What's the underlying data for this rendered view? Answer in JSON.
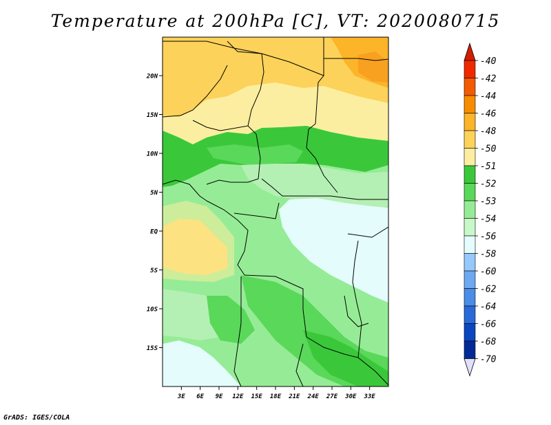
{
  "title": "Temperature at 200hPa [C], VT: 2020080715",
  "credit": "GrADS: IGES/COLA",
  "map": {
    "lon_range": [
      0,
      36
    ],
    "lat_range": [
      -20,
      25
    ],
    "x_ticks": [
      "3E",
      "6E",
      "9E",
      "12E",
      "15E",
      "18E",
      "21E",
      "24E",
      "27E",
      "30E",
      "33E"
    ],
    "y_ticks": [
      "20N",
      "15N",
      "10N",
      "5N",
      "EQ",
      "5S",
      "10S",
      "15S"
    ]
  },
  "colorbar": {
    "labels": [
      "-40",
      "-42",
      "-44",
      "-46",
      "-48",
      "-50",
      "-51",
      "-52",
      "-53",
      "-54",
      "-56",
      "-58",
      "-60",
      "-62",
      "-64",
      "-66",
      "-68",
      "-70"
    ],
    "colors": [
      "#f02800",
      "#f45a00",
      "#f88c00",
      "#fcb428",
      "#fcd25a",
      "#fceea0",
      "#3ac83a",
      "#5ad85a",
      "#96ec96",
      "#c8f8c8",
      "#e4fcfc",
      "#96c8fc",
      "#6ea8f0",
      "#4a8ce6",
      "#2a6ad8",
      "#0a46c0",
      "#002a96",
      "#000a64"
    ],
    "top_color": "#d21e00",
    "bottom_color": "#e0e0fa"
  }
}
